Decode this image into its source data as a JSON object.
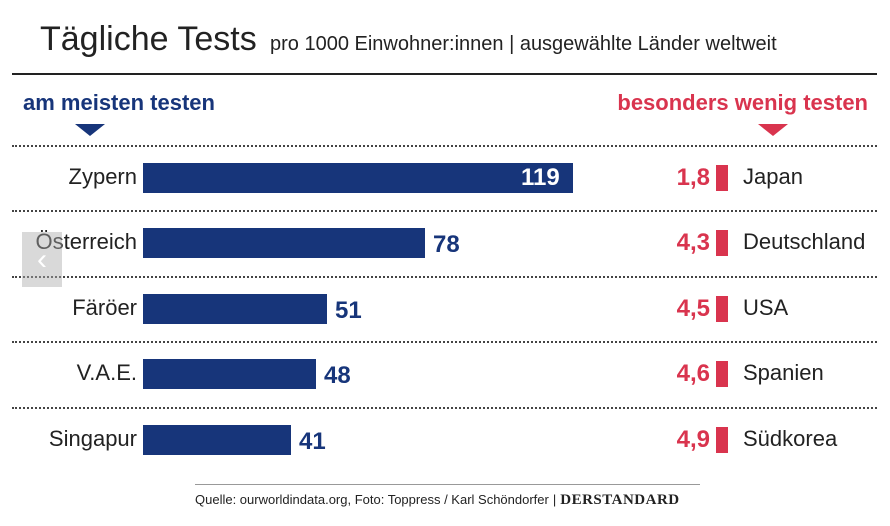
{
  "title": "Tägliche Tests",
  "subtitle": "pro 1000 Einwohner:innen | ausgewählte Länder weltweit",
  "left_heading": "am meisten testen",
  "right_heading": "besonders wenig testen",
  "source": "Quelle: ourworldindata.org, Foto: Toppress / Karl Schöndorfer",
  "separator": "|",
  "brand": "DERSTANDARD",
  "nav": {
    "prev_icon": "‹"
  },
  "colors": {
    "most": "#17357a",
    "least": "#d9344e"
  },
  "chart_data": [
    {
      "type": "bar",
      "orientation": "horizontal",
      "group": "am meisten testen",
      "categories": [
        "Zypern",
        "Österreich",
        "Färöer",
        "V.A.E.",
        "Singapur"
      ],
      "values": [
        119,
        78,
        51,
        48,
        41
      ],
      "labels": [
        "119",
        "78",
        "51",
        "48",
        "41"
      ]
    },
    {
      "type": "bar",
      "orientation": "horizontal",
      "group": "besonders wenig testen",
      "categories": [
        "Japan",
        "Deutschland",
        "USA",
        "Spanien",
        "Südkorea"
      ],
      "values": [
        1.8,
        4.3,
        4.5,
        4.6,
        4.9
      ],
      "labels": [
        "1,8",
        "4,3",
        "4,5",
        "4,6",
        "4,9"
      ]
    }
  ]
}
